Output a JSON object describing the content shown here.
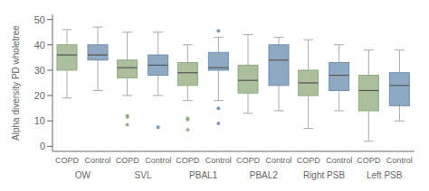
{
  "chart_data": {
    "type": "box",
    "categories": [
      "OW",
      "SVL",
      "PBAL1",
      "PBAL2",
      "Right PSB",
      "Left PSB"
    ],
    "ylabel": "Alpha diversity PD wholetree",
    "ylim": [
      -2,
      52
    ],
    "yticks": [
      0,
      10,
      20,
      30,
      40,
      50
    ],
    "series": [
      {
        "name": "COPD",
        "color": "#8faa7c",
        "values": [
          {
            "whislo": 19,
            "q1": 30,
            "med": 36,
            "q3": 40,
            "whishi": 46,
            "fliers": []
          },
          {
            "whislo": 20,
            "q1": 27,
            "med": 31,
            "q3": 34,
            "whishi": 45,
            "fliers": [
              8.5,
              11.5,
              12
            ]
          },
          {
            "whislo": 18,
            "q1": 24,
            "med": 29,
            "q3": 33,
            "whishi": 40,
            "fliers": [
              6.5,
              10.5,
              11
            ]
          },
          {
            "whislo": 13,
            "q1": 21,
            "med": 26,
            "q3": 32,
            "whishi": 44,
            "fliers": []
          },
          {
            "whislo": 7,
            "q1": 20,
            "med": 25,
            "q3": 30,
            "whishi": 42,
            "fliers": []
          },
          {
            "whislo": 2,
            "q1": 14,
            "med": 22,
            "q3": 28,
            "whishi": 38,
            "fliers": []
          }
        ]
      },
      {
        "name": "Control",
        "color": "#6b8cad",
        "values": [
          {
            "whislo": 22,
            "q1": 34,
            "med": 36,
            "q3": 40,
            "whishi": 47,
            "fliers": []
          },
          {
            "whislo": 20,
            "q1": 28,
            "med": 32,
            "q3": 36,
            "whishi": 45,
            "fliers": [
              7.5
            ]
          },
          {
            "whislo": 18,
            "q1": 30,
            "med": 31,
            "q3": 37,
            "whishi": 43,
            "fliers": [
              9,
              15,
              45.5
            ]
          },
          {
            "whislo": 14,
            "q1": 24,
            "med": 34,
            "q3": 40,
            "whishi": 43,
            "fliers": []
          },
          {
            "whislo": 14,
            "q1": 22,
            "med": 28,
            "q3": 33,
            "whishi": 40,
            "fliers": []
          },
          {
            "whislo": 10,
            "q1": 16,
            "med": 24,
            "q3": 29,
            "whishi": 38,
            "fliers": []
          }
        ]
      }
    ]
  }
}
